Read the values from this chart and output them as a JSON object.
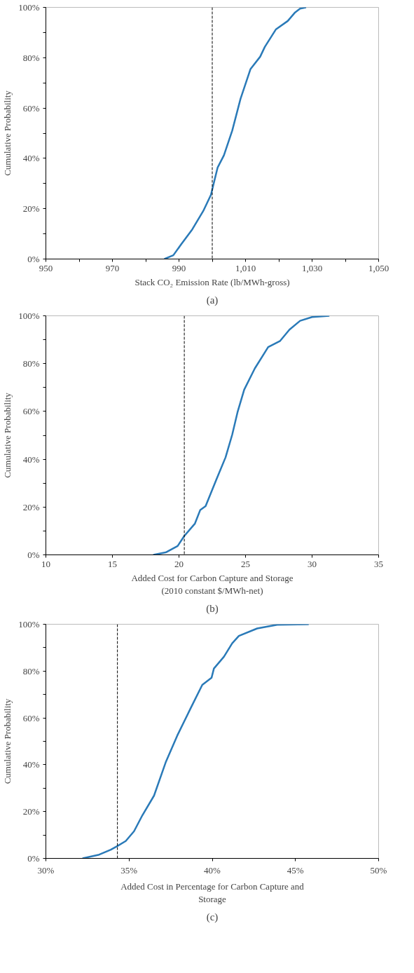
{
  "chart_data": [
    {
      "type": "line",
      "xlabel": "Stack CO₂ Emission Rate (lb/MWh-gross)",
      "ylabel": "Cumulative Probability",
      "annotations": [
        "(a)"
      ],
      "x": [
        985.6,
        988.3,
        990.7,
        994,
        997.3,
        999.6,
        1001.6,
        1003.5,
        1006,
        1008.5,
        1011.5,
        1014.4,
        1015.8,
        1019.1,
        1022.7,
        1024.9,
        1026.4,
        1028.2
      ],
      "series": [
        {
          "color": "#2a7ab8",
          "values": [
            0,
            1.5,
            5.9,
            11.8,
            19.1,
            25.5,
            36.3,
            41.2,
            51,
            63.7,
            75.5,
            80.4,
            84.3,
            91.2,
            94.6,
            98,
            99.5,
            100
          ]
        }
      ],
      "xlim": [
        950,
        1050
      ],
      "xticks": [
        {
          "value": 950,
          "label": "950"
        },
        {
          "value": 960,
          "label": null
        },
        {
          "value": 970,
          "label": "970"
        },
        {
          "value": 980,
          "label": null
        },
        {
          "value": 990,
          "label": "990"
        },
        {
          "value": 1000,
          "label": null
        },
        {
          "value": 1010,
          "label": "1,010"
        },
        {
          "value": 1020,
          "label": null
        },
        {
          "value": 1030,
          "label": "1,030"
        },
        {
          "value": 1040,
          "label": null
        },
        {
          "value": 1050,
          "label": "1,050"
        }
      ],
      "ylim": [
        0,
        100
      ],
      "yticks": [
        {
          "value": 0,
          "label": "0%"
        },
        {
          "value": 10,
          "label": null
        },
        {
          "value": 20,
          "label": "20%"
        },
        {
          "value": 30,
          "label": null
        },
        {
          "value": 40,
          "label": "40%"
        },
        {
          "value": 50,
          "label": null
        },
        {
          "value": 60,
          "label": "60%"
        },
        {
          "value": 70,
          "label": null
        },
        {
          "value": 80,
          "label": "80%"
        },
        {
          "value": 90,
          "label": null
        },
        {
          "value": 100,
          "label": "100%"
        }
      ],
      "ref_lines": [
        {
          "axis": "x",
          "value": 1000,
          "color": "#000000",
          "line_style": "dashed"
        }
      ],
      "grid": false,
      "line_style": "solid",
      "marker": "none"
    },
    {
      "type": "line",
      "xlabel": "Added Cost for Carbon Capture and Storage\n(2010 constant $/MWh-net)",
      "ylabel": "Cumulative Probability",
      "annotations": [
        "(b)"
      ],
      "x": [
        18.07,
        19.0,
        19.9,
        20.4,
        21.2,
        21.6,
        22.0,
        22.8,
        23.5,
        24.0,
        24.4,
        24.9,
        25.7,
        26.7,
        27.6,
        28.3,
        29.1,
        30.0,
        31.3
      ],
      "series": [
        {
          "color": "#2a7ab8",
          "values": [
            0,
            1,
            3.7,
            7.9,
            13.1,
            18.8,
            20.4,
            31.4,
            40.8,
            50.3,
            59.7,
            69.1,
            78,
            86.9,
            89.5,
            94.2,
            97.9,
            99.5,
            100
          ]
        }
      ],
      "xlim": [
        10,
        35
      ],
      "xticks": [
        {
          "value": 10,
          "label": "10"
        },
        {
          "value": 15,
          "label": "15"
        },
        {
          "value": 20,
          "label": "20"
        },
        {
          "value": 25,
          "label": "25"
        },
        {
          "value": 30,
          "label": "30"
        },
        {
          "value": 35,
          "label": "35"
        }
      ],
      "ylim": [
        0,
        100
      ],
      "yticks": [
        {
          "value": 0,
          "label": "0%"
        },
        {
          "value": 10,
          "label": null
        },
        {
          "value": 20,
          "label": "20%"
        },
        {
          "value": 30,
          "label": null
        },
        {
          "value": 40,
          "label": "40%"
        },
        {
          "value": 50,
          "label": null
        },
        {
          "value": 60,
          "label": "60%"
        },
        {
          "value": 70,
          "label": null
        },
        {
          "value": 80,
          "label": "80%"
        },
        {
          "value": 90,
          "label": null
        },
        {
          "value": 100,
          "label": "100%"
        }
      ],
      "ref_lines": [
        {
          "axis": "x",
          "value": 20.4,
          "color": "#000000",
          "line_style": "dashed"
        }
      ],
      "grid": false,
      "line_style": "solid",
      "marker": "none"
    },
    {
      "type": "line",
      "xlabel": "Added Cost in Percentage for Carbon Capture and\nStorage",
      "ylabel": "Cumulative Probability",
      "annotations": [
        "(c)"
      ],
      "x": [
        32.2,
        33.2,
        33.9,
        34.3,
        34.8,
        35.3,
        35.8,
        36.5,
        37.2,
        37.9,
        38.7,
        39.4,
        39.96,
        40.1,
        40.7,
        41.2,
        41.6,
        42.7,
        43.9,
        45.8
      ],
      "series": [
        {
          "color": "#2a7ab8",
          "values": [
            0,
            1.6,
            3.7,
            5.3,
            7.4,
            11.6,
            18.4,
            26.8,
            41,
            52.5,
            64.1,
            74.1,
            77.2,
            81.1,
            86.1,
            91.9,
            95,
            98.2,
            99.8,
            100
          ]
        }
      ],
      "xlim": [
        30,
        50
      ],
      "xticks": [
        {
          "value": 30,
          "label": "30%"
        },
        {
          "value": 35,
          "label": "35%"
        },
        {
          "value": 40,
          "label": "40%"
        },
        {
          "value": 45,
          "label": "45%"
        },
        {
          "value": 50,
          "label": "50%"
        }
      ],
      "ylim": [
        0,
        100
      ],
      "yticks": [
        {
          "value": 0,
          "label": "0%"
        },
        {
          "value": 10,
          "label": null
        },
        {
          "value": 20,
          "label": "20%"
        },
        {
          "value": 30,
          "label": null
        },
        {
          "value": 40,
          "label": "40%"
        },
        {
          "value": 50,
          "label": null
        },
        {
          "value": 60,
          "label": "60%"
        },
        {
          "value": 70,
          "label": null
        },
        {
          "value": 80,
          "label": "80%"
        },
        {
          "value": 90,
          "label": null
        },
        {
          "value": 100,
          "label": "100%"
        }
      ],
      "ref_lines": [
        {
          "axis": "x",
          "value": 34.3,
          "color": "#000000",
          "line_style": "dashed"
        }
      ],
      "grid": false,
      "line_style": "solid",
      "marker": "none"
    }
  ]
}
